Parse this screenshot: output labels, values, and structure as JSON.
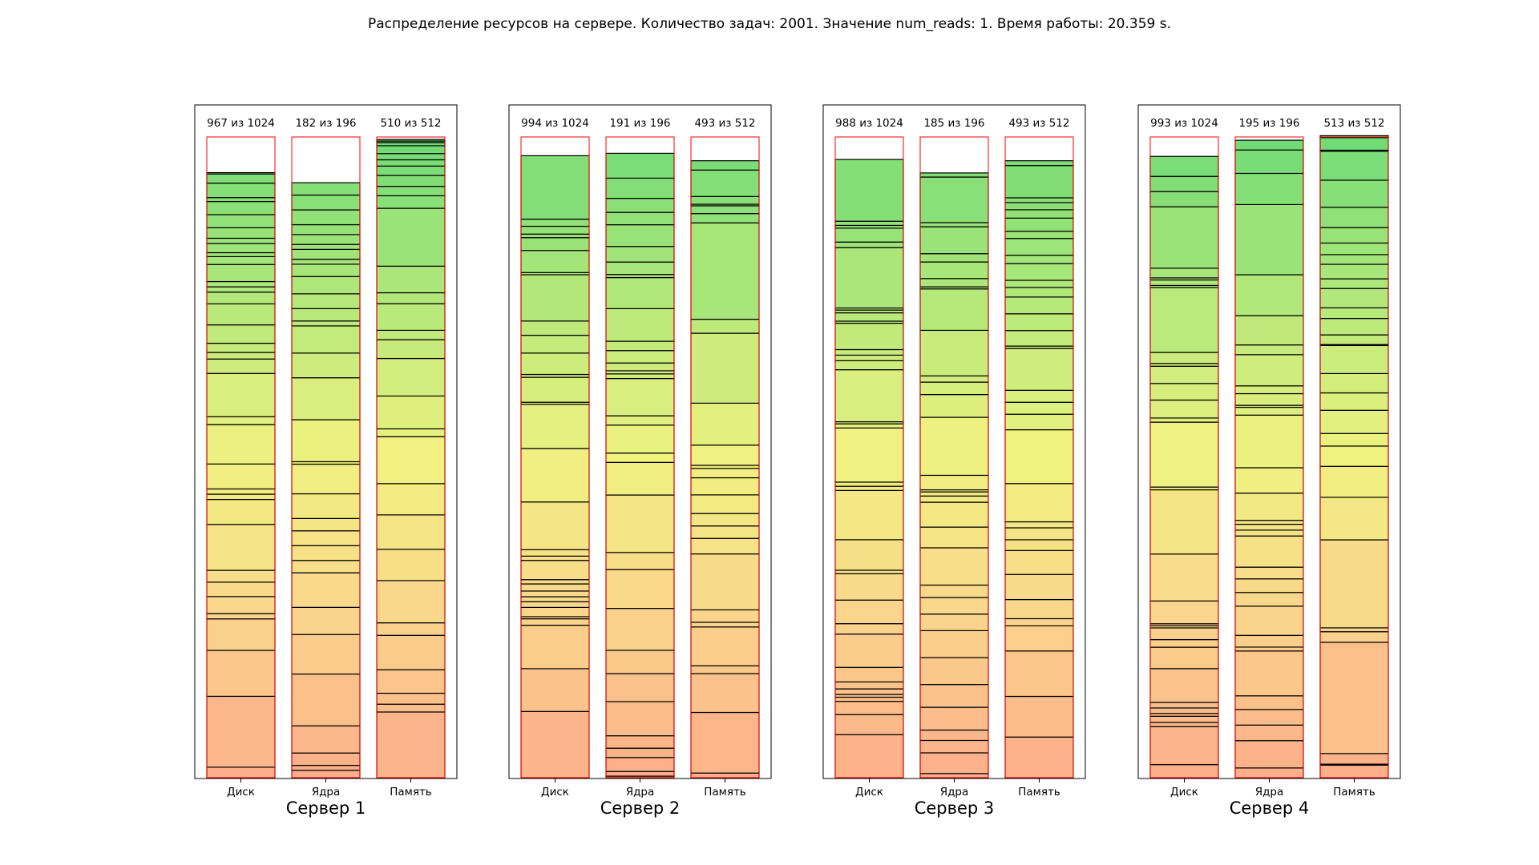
{
  "figure_title": "Распределение ресурсов на сервере. Количество задач: 2001. Значение num_reads: 1. Время работы: 20.359 s.",
  "chart_data": [
    {
      "type": "stacked-bar",
      "title": "Сервер 1",
      "categories": [
        "Диск",
        "Ядра",
        "Память"
      ],
      "used": [
        967,
        182,
        510
      ],
      "capacity": [
        1024,
        196,
        512
      ],
      "labels": [
        "967 из 1024",
        "182 из 196",
        "510 из 512"
      ],
      "segments": [
        [
          8,
          54,
          35,
          24,
          4,
          13,
          11,
          9,
          35,
          19,
          4,
          4,
          19,
          30,
          6,
          33,
          11,
          5,
          7,
          14,
          16,
          9,
          4,
          4,
          13,
          6,
          3,
          7,
          4,
          8,
          10,
          10,
          3,
          11,
          7,
          1
        ],
        [
          3,
          2,
          5,
          11,
          21,
          16,
          11,
          14,
          5,
          6,
          6,
          5,
          10,
          12,
          1,
          17,
          17,
          10,
          11,
          2,
          5,
          6,
          7,
          5,
          2,
          4,
          2,
          4,
          4,
          6,
          6,
          5
        ],
        [
          42,
          5,
          7,
          15,
          22,
          8,
          27,
          20,
          22,
          20,
          30,
          5,
          21,
          24,
          12,
          6,
          17,
          7,
          17,
          37,
          8,
          6,
          7,
          6,
          4,
          4,
          5,
          2,
          1,
          1
        ]
      ]
    },
    {
      "type": "stacked-bar",
      "title": "Сервер 2",
      "categories": [
        "Диск",
        "Ядра",
        "Память"
      ],
      "used": [
        994,
        191,
        493
      ],
      "capacity": [
        1024,
        196,
        512
      ],
      "labels": [
        "994 из 1024",
        "191 из 196",
        "493 из 512"
      ],
      "segments": [
        [
          93,
          60,
          61,
          9,
          3,
          13,
          8,
          7,
          8,
          10,
          6,
          27,
          6,
          9,
          67,
          75,
          62,
          3,
          35,
          4,
          30,
          25,
          20,
          65,
          3,
          31,
          18,
          5,
          11,
          10,
          89
        ],
        [
          1,
          3,
          9,
          6,
          8,
          22,
          18,
          15,
          27,
          25,
          11,
          37,
          21,
          6,
          18,
          6,
          24,
          3,
          2,
          5,
          8,
          6,
          21,
          20,
          2,
          8,
          10,
          14,
          8,
          9,
          13,
          16
        ],
        [
          3,
          39,
          25,
          5,
          25,
          3,
          8,
          36,
          10,
          8,
          8,
          12,
          11,
          6,
          2,
          13,
          27,
          45,
          9,
          62,
          6,
          5,
          1,
          5,
          17,
          6
        ]
      ]
    },
    {
      "type": "stacked-bar",
      "title": "Сервер 3",
      "categories": [
        "Диск",
        "Ядра",
        "Память"
      ],
      "used": [
        988,
        185,
        493
      ],
      "capacity": [
        1024,
        196,
        512
      ],
      "labels": [
        "988 из 1024",
        "185 из 196",
        "493 из 512"
      ],
      "segments": [
        [
          62,
          29,
          19,
          6,
          4,
          8,
          10,
          21,
          48,
          15,
          34,
          38,
          5,
          44,
          71,
          6,
          6,
          78,
          6,
          3,
          75,
          13,
          8,
          8,
          38,
          3,
          12,
          4,
          3,
          87,
          8,
          20,
          4,
          6,
          89
        ],
        [
          2,
          10,
          6,
          5,
          11,
          11,
          13,
          13,
          8,
          8,
          6,
          18,
          10,
          12,
          3,
          2,
          1,
          7,
          28,
          11,
          6,
          3,
          22,
          20,
          1,
          4,
          8,
          4,
          13,
          2,
          22,
          2
        ],
        [
          34,
          34,
          38,
          21,
          6,
          16,
          21,
          20,
          9,
          10,
          5,
          32,
          45,
          13,
          10,
          10,
          35,
          2,
          13,
          14,
          14,
          8,
          6,
          14,
          7,
          14,
          6,
          11,
          7,
          6,
          4,
          27,
          4
        ]
      ]
    },
    {
      "type": "stacked-bar",
      "title": "Сервер 4",
      "categories": [
        "Диск",
        "Ядра",
        "Память"
      ],
      "used": [
        993,
        195,
        513
      ],
      "capacity": [
        1024,
        196,
        512
      ],
      "labels": [
        "993 из 1024",
        "195 из 196",
        "513 из 512"
      ],
      "segments": [
        [
          19,
          55,
          6,
          9,
          4,
          8,
          8,
          49,
          31,
          11,
          17,
          3,
          3,
          33,
          68,
          93,
          4,
          94,
          6,
          26,
          24,
          25,
          4,
          16,
          94,
          3,
          8,
          3,
          14,
          89,
          22,
          22,
          29
        ],
        [
          5,
          14,
          8,
          8,
          7,
          23,
          2,
          6,
          15,
          7,
          7,
          6,
          16,
          3,
          3,
          2,
          14,
          13,
          27,
          4,
          1,
          6,
          4,
          16,
          5,
          15,
          21,
          36,
          16,
          12,
          5
        ],
        [
          13,
          1,
          11,
          115,
          11,
          4,
          91,
          44,
          32,
          21,
          13,
          24,
          18,
          20,
          29,
          1,
          10,
          17,
          11,
          20,
          10,
          15,
          10,
          12,
          16,
          21,
          28,
          30,
          1,
          13,
          2
        ]
      ]
    }
  ]
}
